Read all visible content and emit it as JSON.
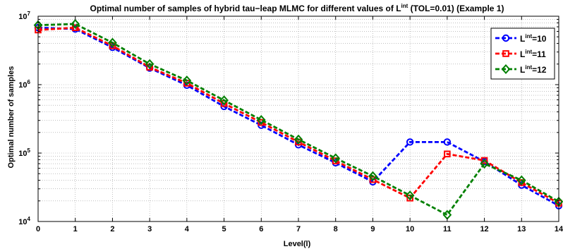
{
  "chart_data": {
    "type": "line",
    "title_parts": {
      "before": "Optimal number of samples of hybrid tau−leap MLMC for different values of L",
      "sup": "int",
      "after": " (TOL=0.01) (Example 1)"
    },
    "xlabel": "Level(l)",
    "ylabel": "Optimal number of samples",
    "x": [
      0,
      1,
      2,
      3,
      4,
      5,
      6,
      7,
      8,
      9,
      10,
      11,
      12,
      13,
      14
    ],
    "xlim": [
      0,
      14
    ],
    "xticks": [
      "0",
      "1",
      "2",
      "3",
      "4",
      "5",
      "6",
      "7",
      "8",
      "9",
      "10",
      "11",
      "12",
      "13",
      "14"
    ],
    "ylim": [
      10000,
      10000000
    ],
    "yscale": "log",
    "yticks": [
      {
        "value": 10000,
        "base": "10",
        "exp": "4"
      },
      {
        "value": 100000,
        "base": "10",
        "exp": "5"
      },
      {
        "value": 1000000,
        "base": "10",
        "exp": "6"
      },
      {
        "value": 10000000,
        "base": "10",
        "exp": "7"
      }
    ],
    "grid": true,
    "legend_position": "top-right",
    "series": [
      {
        "label_base": "L",
        "label_sup": "int",
        "label_after": "=10",
        "color": "#0000ff",
        "marker": "circle",
        "values": [
          6800000,
          6500000,
          3500000,
          1750000,
          980000,
          480000,
          255000,
          132000,
          72000,
          38000,
          145000,
          145000,
          75000,
          34000,
          17000
        ]
      },
      {
        "label_base": "L",
        "label_sup": "int",
        "label_after": "=11",
        "color": "#ff0000",
        "marker": "square",
        "values": [
          6300000,
          6800000,
          3700000,
          1800000,
          1050000,
          530000,
          280000,
          145000,
          77000,
          41000,
          22000,
          97000,
          78000,
          37000,
          18500
        ]
      },
      {
        "label_base": "L",
        "label_sup": "int",
        "label_after": "=12",
        "color": "#008000",
        "marker": "diamond",
        "values": [
          7400000,
          7700000,
          4100000,
          2000000,
          1150000,
          590000,
          305000,
          158000,
          84000,
          46000,
          24000,
          12500,
          70000,
          40000,
          19500
        ]
      }
    ]
  }
}
